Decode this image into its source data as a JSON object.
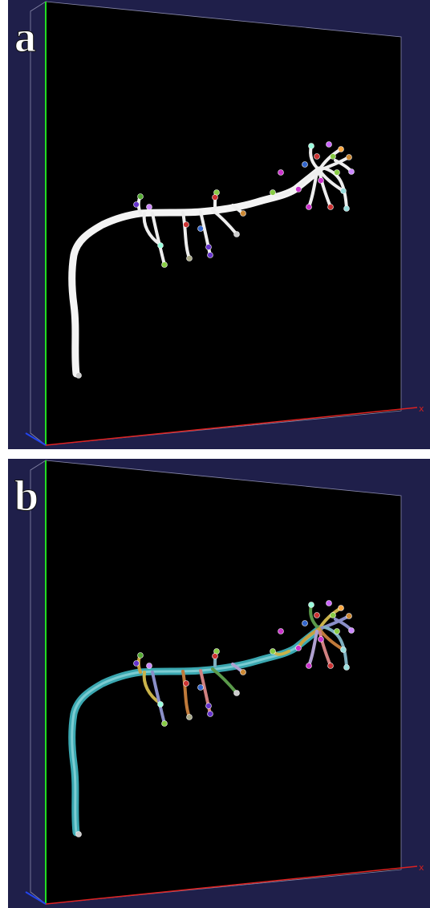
{
  "panels": [
    {
      "label": "a",
      "axis_label": "x"
    },
    {
      "label": "b",
      "axis_label": "x"
    }
  ]
}
